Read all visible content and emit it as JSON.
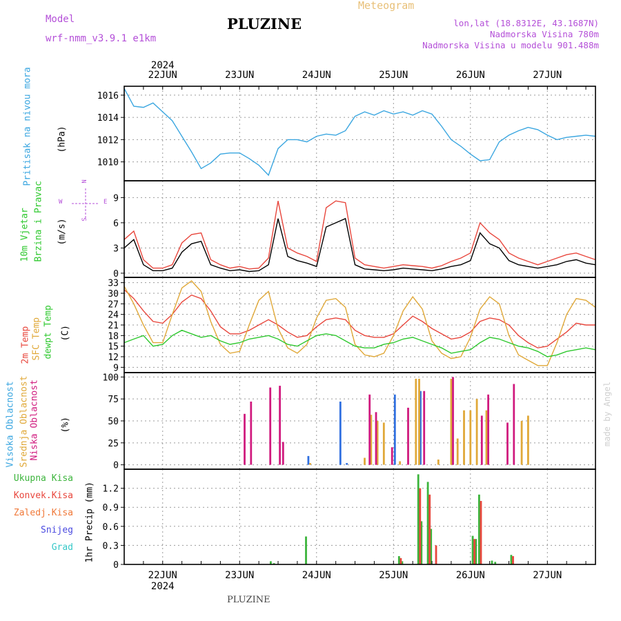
{
  "header": {
    "model_label": "Model",
    "model_name": "wrf-nmm_v3.9.1 e1km",
    "station": "PLUZINE",
    "product": "Meteogram",
    "coords": "lon,lat (18.8312E, 43.1687N)",
    "altitude": "Nadmorska Visina 780m",
    "model_altitude": "Nadmorska Visina u modelu 901.488m",
    "footer": "PLUZINE",
    "credit": "made by Angel"
  },
  "colors": {
    "pressure": "#3aa6e0",
    "wind_speed": "#000000",
    "wind_gust": "#e8463c",
    "temp2m": "#e8463c",
    "sfc_temp": "#e0a838",
    "dewpt": "#2ec82e",
    "cloud_high": "#2f6fe0",
    "cloud_mid": "#e0a838",
    "cloud_low": "#d01a7e",
    "precip_total": "#3cb43c",
    "precip_conv": "#e8463c",
    "precip_snow": "#4a4ae0",
    "precip_hail": "#36c8c8"
  },
  "chart_data": {
    "type": "line",
    "x_axis": {
      "year": "2024",
      "days": [
        "22JUN",
        "23JUN",
        "24JUN",
        "25JUN",
        "26JUN",
        "27JUN"
      ],
      "x_range_hours": [
        0,
        147
      ]
    },
    "panels": [
      {
        "id": "pressure",
        "type": "line",
        "ylabel": "Pritisak na nivou mora",
        "unit": "(hPa)",
        "ylim": [
          1008.3,
          1016.8
        ],
        "yticks": [
          1010,
          1012,
          1014,
          1016
        ],
        "series": [
          {
            "key": "pressure",
            "x": [
              0,
              3,
              6,
              9,
              12,
              15,
              18,
              21,
              24,
              27,
              30,
              33,
              36,
              39,
              42,
              45,
              48,
              51,
              54,
              57,
              60,
              63,
              66,
              69,
              72,
              75,
              78,
              81,
              84,
              87,
              90,
              93,
              96,
              99,
              102,
              105,
              108,
              111,
              114,
              117,
              120,
              123,
              126,
              129,
              132,
              135,
              138,
              141,
              144,
              147
            ],
            "values": [
              1016.6,
              1015.0,
              1014.9,
              1015.3,
              1014.5,
              1013.7,
              1012.3,
              1010.9,
              1009.4,
              1009.9,
              1010.7,
              1010.8,
              1010.8,
              1010.3,
              1009.7,
              1008.8,
              1011.2,
              1012.0,
              1012.0,
              1011.8,
              1012.3,
              1012.5,
              1012.4,
              1012.8,
              1014.1,
              1014.5,
              1014.2,
              1014.6,
              1014.3,
              1014.5,
              1014.2,
              1014.6,
              1014.3,
              1013.2,
              1012.0,
              1011.4,
              1010.7,
              1010.1,
              1010.2,
              1011.8,
              1012.4,
              1012.8,
              1013.1,
              1012.9,
              1012.4,
              1012.0,
              1012.2,
              1012.3,
              1012.4,
              1012.3
            ]
          }
        ]
      },
      {
        "id": "wind",
        "type": "line",
        "ylabel": "10m Vjetar Brzina i Pravac",
        "unit": "(m/s)",
        "ylim": [
          -0.5,
          11
        ],
        "yticks": [
          0,
          3,
          6,
          9
        ],
        "compass": [
          "S",
          "W",
          "E",
          "N"
        ],
        "series": [
          {
            "key": "wind_speed",
            "name": "",
            "x": [
              0,
              3,
              6,
              9,
              12,
              15,
              18,
              21,
              24,
              27,
              30,
              33,
              36,
              39,
              42,
              45,
              48,
              51,
              54,
              57,
              60,
              63,
              66,
              69,
              72,
              75,
              78,
              81,
              84,
              87,
              90,
              93,
              96,
              99,
              102,
              105,
              108,
              111,
              114,
              117,
              120,
              123,
              126,
              129,
              132,
              135,
              138,
              141,
              144,
              147
            ],
            "values": [
              3.0,
              4.0,
              1.0,
              0.3,
              0.3,
              0.6,
              2.5,
              3.5,
              3.8,
              1.0,
              0.6,
              0.3,
              0.4,
              0.2,
              0.3,
              1.0,
              6.5,
              2.0,
              1.5,
              1.2,
              0.8,
              5.5,
              6.0,
              6.5,
              1.0,
              0.5,
              0.4,
              0.3,
              0.4,
              0.6,
              0.5,
              0.4,
              0.3,
              0.5,
              0.8,
              1.0,
              1.5,
              4.8,
              3.5,
              3.0,
              1.5,
              1.0,
              0.8,
              0.6,
              0.8,
              1.0,
              1.4,
              1.6,
              1.2,
              1.0
            ]
          },
          {
            "key": "wind_gust",
            "name": "",
            "x": [
              0,
              3,
              6,
              9,
              12,
              15,
              18,
              21,
              24,
              27,
              30,
              33,
              36,
              39,
              42,
              45,
              48,
              51,
              54,
              57,
              60,
              63,
              66,
              69,
              72,
              75,
              78,
              81,
              84,
              87,
              90,
              93,
              96,
              99,
              102,
              105,
              108,
              111,
              114,
              117,
              120,
              123,
              126,
              129,
              132,
              135,
              138,
              141,
              144,
              147
            ],
            "values": [
              4.0,
              5.0,
              1.6,
              0.6,
              0.6,
              1.0,
              3.6,
              4.6,
              4.8,
              1.6,
              1.0,
              0.6,
              0.8,
              0.5,
              0.6,
              1.8,
              8.6,
              3.0,
              2.4,
              2.0,
              1.4,
              7.8,
              8.6,
              8.4,
              1.8,
              1.0,
              0.8,
              0.6,
              0.8,
              1.0,
              0.9,
              0.8,
              0.6,
              0.9,
              1.4,
              1.8,
              2.4,
              6.0,
              4.8,
              4.0,
              2.4,
              1.8,
              1.4,
              1.0,
              1.4,
              1.8,
              2.2,
              2.4,
              2.0,
              1.6
            ]
          }
        ]
      },
      {
        "id": "temperature",
        "type": "line",
        "ylabel": [
          "2m Temp",
          "SFC Temp",
          "dewpt Temp"
        ],
        "unit": "(C)",
        "ylim": [
          7.5,
          34.5
        ],
        "yticks": [
          9,
          12,
          15,
          18,
          21,
          24,
          27,
          30,
          33
        ],
        "series": [
          {
            "key": "temp2m",
            "name": "2m Temp",
            "x": [
              0,
              3,
              6,
              9,
              12,
              15,
              18,
              21,
              24,
              27,
              30,
              33,
              36,
              39,
              42,
              45,
              48,
              51,
              54,
              57,
              60,
              63,
              66,
              69,
              72,
              75,
              78,
              81,
              84,
              87,
              90,
              93,
              96,
              99,
              102,
              105,
              108,
              111,
              114,
              117,
              120,
              123,
              126,
              129,
              132,
              135,
              138,
              141,
              144,
              147
            ],
            "values": [
              31.0,
              28.5,
              25.0,
              22.0,
              21.5,
              24.0,
              27.5,
              29.5,
              28.5,
              25.0,
              20.5,
              18.5,
              18.5,
              19.5,
              21.0,
              22.5,
              21.0,
              19.0,
              17.5,
              18.0,
              20.5,
              22.5,
              23.0,
              22.5,
              19.5,
              18.0,
              17.5,
              17.5,
              18.5,
              21.0,
              23.5,
              22.0,
              20.0,
              18.5,
              17.0,
              17.5,
              19.0,
              22.0,
              23.0,
              22.5,
              21.0,
              18.0,
              16.0,
              14.5,
              15.0,
              17.0,
              19.0,
              21.5,
              21.0,
              21.0
            ]
          },
          {
            "key": "sfc_temp",
            "name": "SFC Temp",
            "x": [
              0,
              3,
              6,
              9,
              12,
              15,
              18,
              21,
              24,
              27,
              30,
              33,
              36,
              39,
              42,
              45,
              48,
              51,
              54,
              57,
              60,
              63,
              66,
              69,
              72,
              75,
              78,
              81,
              84,
              87,
              90,
              93,
              96,
              99,
              102,
              105,
              108,
              111,
              114,
              117,
              120,
              123,
              126,
              129,
              132,
              135,
              138,
              141,
              144,
              147
            ],
            "values": [
              32.0,
              27.0,
              21.0,
              16.0,
              16.0,
              24.0,
              31.5,
              33.5,
              30.5,
              22.0,
              15.5,
              13.0,
              13.5,
              21.0,
              28.0,
              30.5,
              20.0,
              14.5,
              13.0,
              15.5,
              23.0,
              28.0,
              28.5,
              26.0,
              15.5,
              12.5,
              12.0,
              13.0,
              18.0,
              25.0,
              29.0,
              25.5,
              16.5,
              13.0,
              11.5,
              12.0,
              17.5,
              25.5,
              29.0,
              27.0,
              18.0,
              12.5,
              11.0,
              9.5,
              9.5,
              16.0,
              24.0,
              28.5,
              28.0,
              26.0
            ]
          },
          {
            "key": "dewpt",
            "name": "dewpt Temp",
            "x": [
              0,
              3,
              6,
              9,
              12,
              15,
              18,
              21,
              24,
              27,
              30,
              33,
              36,
              39,
              42,
              45,
              48,
              51,
              54,
              57,
              60,
              63,
              66,
              69,
              72,
              75,
              78,
              81,
              84,
              87,
              90,
              93,
              96,
              99,
              102,
              105,
              108,
              111,
              114,
              117,
              120,
              123,
              126,
              129,
              132,
              135,
              138,
              141,
              144,
              147
            ],
            "values": [
              16.0,
              17.0,
              18.0,
              15.0,
              15.5,
              18.0,
              19.5,
              18.5,
              17.5,
              18.0,
              16.5,
              15.5,
              16.0,
              17.0,
              17.5,
              18.0,
              17.0,
              15.5,
              15.0,
              16.5,
              18.0,
              18.5,
              18.0,
              16.5,
              15.0,
              14.5,
              14.5,
              15.5,
              16.0,
              17.0,
              17.5,
              16.5,
              15.5,
              14.5,
              13.0,
              13.5,
              14.0,
              16.0,
              17.5,
              17.0,
              16.0,
              15.0,
              14.5,
              13.5,
              12.0,
              12.5,
              13.5,
              14.0,
              14.5,
              14.0
            ]
          }
        ]
      },
      {
        "id": "clouds",
        "type": "bar",
        "ylabel": [
          "Visoka Oblacnost",
          "Srednja Oblacnost",
          "Niska Oblacnost"
        ],
        "unit": "(%)",
        "ylim": [
          -5,
          105
        ],
        "yticks": [
          0,
          25,
          50,
          75,
          100
        ],
        "series": [
          {
            "key": "cloud_high",
            "name": "Visoka Oblacnost",
            "x": [
              58,
              68,
              70,
              85,
              93
            ],
            "values": [
              10,
              72,
              2,
              80,
              84
            ]
          },
          {
            "key": "cloud_mid",
            "name": "Srednja Oblacnost",
            "x": [
              58,
              75,
              77,
              79,
              81,
              86,
              91,
              92,
              98,
              102,
              104,
              106,
              108,
              110,
              113,
              124,
              126
            ],
            "values": [
              2,
              8,
              57,
              50,
              48,
              4,
              98,
              98,
              6,
              98,
              30,
              62,
              62,
              75,
              62,
              50,
              56
            ]
          },
          {
            "key": "cloud_low",
            "name": "Niska Oblacnost",
            "x": [
              37,
              39,
              45,
              48,
              49,
              76,
              78,
              83,
              88,
              93,
              102,
              111,
              113,
              119,
              121
            ],
            "values": [
              58,
              72,
              88,
              90,
              26,
              80,
              60,
              20,
              65,
              84,
              100,
              56,
              80,
              48,
              92
            ]
          }
        ]
      },
      {
        "id": "precip",
        "type": "bar",
        "ylabel": "1hr Precip",
        "unit": "(mm)",
        "ylim": [
          0,
          1.5
        ],
        "yticks": [
          0,
          0.3,
          0.6,
          0.9,
          1.2
        ],
        "legend": [
          "Ukupna Kisa",
          "Konvek.Kisa",
          "Zaledj.Kisa",
          "Snijeg",
          "Grad"
        ],
        "series": [
          {
            "key": "precip_total",
            "name": "Ukupna Kisa",
            "x": [
              46,
              47,
              57,
              86,
              87,
              92,
              93,
              95,
              96,
              109,
              110,
              111,
              115,
              116,
              121
            ],
            "values": [
              0.05,
              0.02,
              0.44,
              0.13,
              0.05,
              1.42,
              0.68,
              1.3,
              0.56,
              0.45,
              0.4,
              1.1,
              0.06,
              0.04,
              0.15
            ]
          },
          {
            "key": "precip_conv",
            "name": "Konvek.Kisa",
            "x": [
              86,
              92,
              95,
              97,
              109,
              111,
              121
            ],
            "values": [
              0.1,
              1.2,
              1.1,
              0.3,
              0.4,
              1.0,
              0.13
            ]
          }
        ]
      }
    ]
  }
}
